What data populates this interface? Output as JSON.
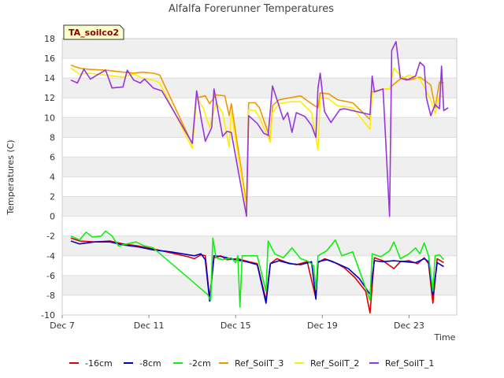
{
  "chart_data": {
    "type": "line",
    "title": "Alfalfa Forerunner Temperatures",
    "xlabel": "Time",
    "ylabel": "Temperatures (C)",
    "badge": "TA_soilco2",
    "ylim": [
      -10,
      18
    ],
    "yticks": [
      -10,
      -8,
      -6,
      -4,
      -2,
      0,
      2,
      4,
      6,
      8,
      10,
      12,
      14,
      16,
      18
    ],
    "xlim": [
      0,
      18.2
    ],
    "xticks": [
      {
        "label": "Dec 7",
        "day": 0
      },
      {
        "label": "Dec 11",
        "day": 4
      },
      {
        "label": "Dec 15",
        "day": 8
      },
      {
        "label": "Dec 19",
        "day": 12
      },
      {
        "label": "Dec 23",
        "day": 16
      }
    ],
    "grid": true,
    "legend_position": "bottom",
    "series": [
      {
        "name": "-16cm",
        "color": "#dd0000",
        "points": [
          [
            0.4,
            -2.2
          ],
          [
            0.8,
            -2.5
          ],
          [
            1.5,
            -2.6
          ],
          [
            2.2,
            -2.5
          ],
          [
            2.8,
            -2.8
          ],
          [
            3.5,
            -3.0
          ],
          [
            4.2,
            -3.3
          ],
          [
            5.0,
            -3.7
          ],
          [
            5.8,
            -4.1
          ],
          [
            6.1,
            -4.3
          ],
          [
            6.4,
            -3.9
          ],
          [
            6.6,
            -4.0
          ],
          [
            6.8,
            -8.3
          ],
          [
            7.0,
            -4.2
          ],
          [
            7.3,
            -4.0
          ],
          [
            7.6,
            -4.4
          ],
          [
            8.1,
            -4.3
          ],
          [
            8.6,
            -4.6
          ],
          [
            9.0,
            -4.8
          ],
          [
            9.4,
            -8.5
          ],
          [
            9.6,
            -4.8
          ],
          [
            9.9,
            -4.3
          ],
          [
            10.4,
            -4.7
          ],
          [
            10.8,
            -4.9
          ],
          [
            11.3,
            -4.6
          ],
          [
            11.7,
            -8.3
          ],
          [
            11.8,
            -4.7
          ],
          [
            12.1,
            -4.3
          ],
          [
            12.5,
            -4.6
          ],
          [
            13.0,
            -5.2
          ],
          [
            13.5,
            -6.2
          ],
          [
            14.0,
            -7.6
          ],
          [
            14.2,
            -9.8
          ],
          [
            14.4,
            -4.2
          ],
          [
            14.8,
            -4.5
          ],
          [
            15.3,
            -5.3
          ],
          [
            15.6,
            -4.6
          ],
          [
            16.0,
            -4.5
          ],
          [
            16.4,
            -4.8
          ],
          [
            16.7,
            -4.2
          ],
          [
            16.9,
            -4.8
          ],
          [
            17.1,
            -8.8
          ],
          [
            17.3,
            -4.3
          ],
          [
            17.6,
            -4.7
          ]
        ]
      },
      {
        "name": "-8cm",
        "color": "#0000cc",
        "points": [
          [
            0.4,
            -2.5
          ],
          [
            0.8,
            -2.8
          ],
          [
            1.5,
            -2.6
          ],
          [
            2.2,
            -2.6
          ],
          [
            2.8,
            -2.9
          ],
          [
            3.5,
            -3.1
          ],
          [
            4.2,
            -3.4
          ],
          [
            5.0,
            -3.6
          ],
          [
            6.1,
            -4.0
          ],
          [
            6.4,
            -3.8
          ],
          [
            6.6,
            -4.4
          ],
          [
            6.8,
            -8.6
          ],
          [
            7.0,
            -4.0
          ],
          [
            7.4,
            -4.1
          ],
          [
            8.0,
            -4.4
          ],
          [
            8.5,
            -4.6
          ],
          [
            9.0,
            -4.9
          ],
          [
            9.4,
            -8.8
          ],
          [
            9.6,
            -4.8
          ],
          [
            10.0,
            -4.5
          ],
          [
            10.5,
            -4.8
          ],
          [
            11.0,
            -4.9
          ],
          [
            11.5,
            -4.6
          ],
          [
            11.7,
            -8.4
          ],
          [
            11.8,
            -4.6
          ],
          [
            12.2,
            -4.4
          ],
          [
            12.7,
            -4.8
          ],
          [
            13.2,
            -5.3
          ],
          [
            13.7,
            -6.3
          ],
          [
            14.2,
            -7.9
          ],
          [
            14.4,
            -4.5
          ],
          [
            14.8,
            -4.6
          ],
          [
            15.3,
            -4.5
          ],
          [
            15.8,
            -4.6
          ],
          [
            16.3,
            -4.7
          ],
          [
            16.7,
            -4.3
          ],
          [
            16.9,
            -4.6
          ],
          [
            17.1,
            -8.0
          ],
          [
            17.3,
            -4.7
          ],
          [
            17.6,
            -5.1
          ]
        ]
      },
      {
        "name": "-2cm",
        "color": "#11ee11",
        "points": [
          [
            0.4,
            -2.0
          ],
          [
            0.8,
            -2.4
          ],
          [
            1.1,
            -1.6
          ],
          [
            1.4,
            -2.1
          ],
          [
            1.8,
            -2.0
          ],
          [
            2.0,
            -1.5
          ],
          [
            2.3,
            -2.0
          ],
          [
            2.6,
            -3.0
          ],
          [
            3.0,
            -2.8
          ],
          [
            3.4,
            -2.6
          ],
          [
            3.8,
            -3.0
          ],
          [
            4.2,
            -3.2
          ],
          [
            6.7,
            -7.9
          ],
          [
            6.85,
            -8.5
          ],
          [
            6.95,
            -2.2
          ],
          [
            7.1,
            -4.2
          ],
          [
            7.4,
            -4.4
          ],
          [
            7.8,
            -4.2
          ],
          [
            8.0,
            -4.7
          ],
          [
            8.1,
            -4.0
          ],
          [
            8.2,
            -9.2
          ],
          [
            8.3,
            -4.0
          ],
          [
            9.0,
            -4.0
          ],
          [
            9.4,
            -7.6
          ],
          [
            9.5,
            -2.5
          ],
          [
            9.8,
            -3.8
          ],
          [
            10.2,
            -4.2
          ],
          [
            10.6,
            -3.2
          ],
          [
            11.0,
            -4.3
          ],
          [
            11.3,
            -4.5
          ],
          [
            11.6,
            -5.0
          ],
          [
            11.7,
            -7.4
          ],
          [
            11.8,
            -4.0
          ],
          [
            12.2,
            -3.5
          ],
          [
            12.6,
            -2.4
          ],
          [
            12.9,
            -4.0
          ],
          [
            13.4,
            -3.6
          ],
          [
            14.2,
            -8.5
          ],
          [
            14.3,
            -3.8
          ],
          [
            14.7,
            -4.1
          ],
          [
            15.1,
            -3.5
          ],
          [
            15.3,
            -2.6
          ],
          [
            15.6,
            -4.3
          ],
          [
            16.0,
            -3.8
          ],
          [
            16.3,
            -3.2
          ],
          [
            16.5,
            -3.8
          ],
          [
            16.7,
            -2.7
          ],
          [
            16.9,
            -4.0
          ],
          [
            17.1,
            -7.6
          ],
          [
            17.2,
            -4.0
          ],
          [
            17.4,
            -3.9
          ],
          [
            17.6,
            -4.4
          ]
        ]
      },
      {
        "name": "Ref_SoilT_3",
        "color": "#ee9900",
        "points": [
          [
            0.4,
            15.3
          ],
          [
            0.8,
            15.0
          ],
          [
            1.2,
            14.9
          ],
          [
            2.0,
            14.8
          ],
          [
            2.8,
            14.6
          ],
          [
            3.3,
            14.5
          ],
          [
            3.7,
            14.6
          ],
          [
            4.2,
            14.5
          ],
          [
            4.5,
            14.3
          ],
          [
            6.0,
            7.3
          ],
          [
            6.2,
            12.0
          ],
          [
            6.6,
            12.2
          ],
          [
            6.8,
            11.4
          ],
          [
            7.1,
            12.3
          ],
          [
            7.5,
            12.2
          ],
          [
            7.7,
            10.2
          ],
          [
            7.8,
            11.4
          ],
          [
            8.5,
            1.2
          ],
          [
            8.6,
            11.5
          ],
          [
            8.9,
            11.5
          ],
          [
            9.1,
            11.0
          ],
          [
            9.6,
            7.8
          ],
          [
            9.7,
            11.2
          ],
          [
            10.0,
            11.8
          ],
          [
            10.5,
            12.0
          ],
          [
            11.0,
            12.2
          ],
          [
            11.5,
            11.4
          ],
          [
            11.8,
            11.0
          ],
          [
            11.9,
            12.5
          ],
          [
            12.3,
            12.4
          ],
          [
            12.7,
            11.8
          ],
          [
            13.4,
            11.5
          ],
          [
            14.2,
            9.8
          ],
          [
            14.3,
            12.6
          ],
          [
            14.9,
            12.9
          ],
          [
            15.1,
            12.9
          ],
          [
            15.2,
            13.2
          ],
          [
            15.7,
            14.1
          ],
          [
            16.0,
            13.8
          ],
          [
            16.5,
            14.1
          ],
          [
            17.0,
            13.3
          ],
          [
            17.2,
            11.0
          ],
          [
            17.4,
            13.6
          ],
          [
            17.6,
            13.5
          ]
        ]
      },
      {
        "name": "Ref_SoilT_2",
        "color": "#ffee00",
        "points": [
          [
            0.4,
            15.0
          ],
          [
            0.8,
            14.4
          ],
          [
            1.2,
            14.5
          ],
          [
            2.0,
            14.3
          ],
          [
            2.8,
            14.1
          ],
          [
            3.3,
            14.4
          ],
          [
            3.7,
            14.0
          ],
          [
            4.2,
            13.8
          ],
          [
            4.5,
            13.5
          ],
          [
            6.0,
            6.9
          ],
          [
            6.2,
            12.0
          ],
          [
            6.5,
            11.0
          ],
          [
            6.8,
            9.0
          ],
          [
            7.1,
            11.5
          ],
          [
            7.4,
            10.5
          ],
          [
            7.7,
            7.0
          ],
          [
            7.8,
            10.5
          ],
          [
            8.5,
            0.8
          ],
          [
            8.6,
            10.8
          ],
          [
            8.9,
            10.7
          ],
          [
            9.1,
            10.0
          ],
          [
            9.6,
            7.5
          ],
          [
            9.7,
            10.5
          ],
          [
            10.0,
            11.4
          ],
          [
            10.5,
            11.6
          ],
          [
            11.0,
            11.6
          ],
          [
            11.5,
            10.5
          ],
          [
            11.8,
            6.7
          ],
          [
            11.9,
            12.0
          ],
          [
            12.3,
            11.9
          ],
          [
            12.7,
            11.2
          ],
          [
            13.4,
            11.0
          ],
          [
            14.2,
            8.8
          ],
          [
            14.3,
            12.5
          ],
          [
            14.9,
            12.9
          ],
          [
            15.1,
            12.9
          ],
          [
            15.3,
            15.0
          ],
          [
            15.7,
            14.0
          ],
          [
            16.0,
            14.3
          ],
          [
            16.5,
            13.9
          ],
          [
            17.0,
            11.8
          ],
          [
            17.2,
            10.4
          ],
          [
            17.4,
            12.3
          ],
          [
            17.6,
            12.0
          ]
        ]
      },
      {
        "name": "Ref_SoilT_1",
        "color": "#9933dd",
        "points": [
          [
            0.4,
            13.8
          ],
          [
            0.7,
            13.5
          ],
          [
            1.0,
            14.9
          ],
          [
            1.3,
            13.9
          ],
          [
            1.6,
            14.3
          ],
          [
            2.0,
            14.8
          ],
          [
            2.3,
            13.0
          ],
          [
            2.8,
            13.1
          ],
          [
            3.0,
            14.8
          ],
          [
            3.3,
            13.8
          ],
          [
            3.6,
            13.5
          ],
          [
            3.8,
            13.9
          ],
          [
            4.2,
            13.0
          ],
          [
            4.6,
            12.7
          ],
          [
            6.0,
            7.4
          ],
          [
            6.2,
            12.7
          ],
          [
            6.4,
            10.0
          ],
          [
            6.6,
            7.6
          ],
          [
            6.9,
            9.0
          ],
          [
            7.0,
            12.9
          ],
          [
            7.2,
            10.5
          ],
          [
            7.4,
            8.1
          ],
          [
            7.6,
            8.6
          ],
          [
            7.8,
            8.5
          ],
          [
            8.5,
            0.0
          ],
          [
            8.6,
            10.2
          ],
          [
            9.0,
            9.4
          ],
          [
            9.3,
            8.4
          ],
          [
            9.5,
            8.2
          ],
          [
            9.7,
            13.2
          ],
          [
            10.0,
            11.2
          ],
          [
            10.2,
            9.8
          ],
          [
            10.4,
            10.5
          ],
          [
            10.6,
            8.5
          ],
          [
            10.8,
            10.5
          ],
          [
            11.2,
            10.1
          ],
          [
            11.5,
            9.2
          ],
          [
            11.7,
            8.0
          ],
          [
            11.8,
            13.0
          ],
          [
            11.9,
            14.5
          ],
          [
            12.1,
            10.6
          ],
          [
            12.4,
            9.5
          ],
          [
            12.8,
            10.8
          ],
          [
            13.0,
            10.9
          ],
          [
            14.2,
            10.3
          ],
          [
            14.3,
            14.2
          ],
          [
            14.4,
            12.6
          ],
          [
            14.8,
            12.9
          ],
          [
            15.1,
            0.0
          ],
          [
            15.2,
            16.8
          ],
          [
            15.4,
            17.7
          ],
          [
            15.6,
            14.0
          ],
          [
            15.9,
            13.8
          ],
          [
            16.3,
            14.2
          ],
          [
            16.5,
            15.6
          ],
          [
            16.7,
            15.2
          ],
          [
            16.8,
            12.0
          ],
          [
            17.0,
            10.2
          ],
          [
            17.2,
            11.3
          ],
          [
            17.4,
            10.9
          ],
          [
            17.5,
            15.2
          ],
          [
            17.6,
            10.7
          ],
          [
            17.8,
            11.0
          ]
        ]
      }
    ]
  }
}
